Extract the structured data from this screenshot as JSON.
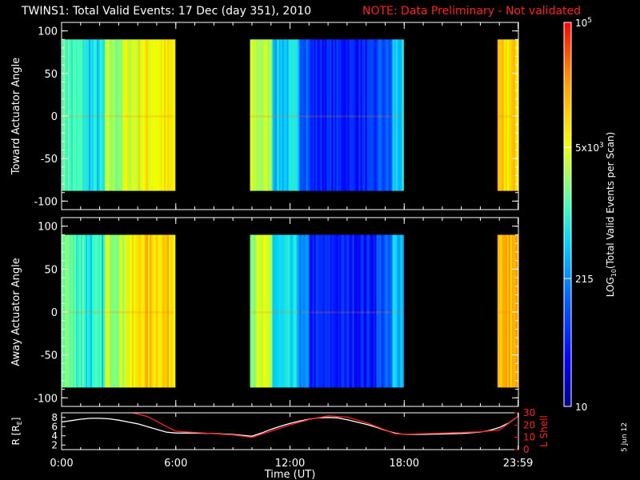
{
  "header": {
    "title": "TWINS1: Total Valid Events: 17 Dec (day 351), 2010",
    "note": "NOTE: Data Preliminary - Not validated",
    "note_color": "#ff2020"
  },
  "side_label": "5 Jun 12",
  "chart_data": [
    {
      "type": "heatmap",
      "panel": "toward",
      "ylabel": "Toward Actuator Angle",
      "ylim": [
        -110,
        110
      ],
      "yticks": [
        "100",
        "50",
        "0",
        "-50",
        "-100"
      ],
      "ytick_values": [
        100,
        50,
        0,
        -50,
        -100
      ],
      "angle_range": [
        -88,
        90
      ],
      "data_blocks_hours": [
        [
          0.0,
          5.9
        ],
        [
          9.9,
          17.9
        ],
        [
          22.9,
          23.98
        ]
      ],
      "colorscale": "rainbow (log)"
    },
    {
      "type": "heatmap",
      "panel": "away",
      "ylabel": "Away Actuator Angle",
      "ylim": [
        -110,
        110
      ],
      "yticks": [
        "100",
        "50",
        "0",
        "-50",
        "-100"
      ],
      "ytick_values": [
        100,
        50,
        0,
        -50,
        -100
      ],
      "angle_range": [
        -88,
        90
      ],
      "data_blocks_hours": [
        [
          0.0,
          5.9
        ],
        [
          9.9,
          17.9
        ],
        [
          22.9,
          23.98
        ]
      ],
      "colorscale": "rainbow (log)"
    },
    {
      "type": "line",
      "panel": "orbit",
      "xlabel": "Time (UT)",
      "xticks": [
        "0:00",
        "6:00",
        "12:00",
        "18:00",
        "23:59"
      ],
      "xtick_hours": [
        0,
        6,
        12,
        18,
        23.98
      ],
      "left_axis": {
        "label": "R [R",
        "label_sub": "E",
        "label_end": "]",
        "ylim": [
          1,
          9
        ],
        "ticks": [
          "8",
          "6",
          "4",
          "2"
        ],
        "tick_values": [
          8,
          6,
          4,
          2
        ]
      },
      "right_axis": {
        "label": "L Shell",
        "ylim": [
          0,
          30
        ],
        "ticks": [
          "30",
          "20",
          "10",
          "0"
        ],
        "tick_values": [
          30,
          20,
          10,
          0
        ],
        "color": "#ff2020"
      },
      "series": [
        {
          "axis": "left",
          "color": "#ffffff",
          "x": [
            0,
            0.5,
            1,
            1.5,
            2,
            2.5,
            3,
            3.5,
            4,
            4.5,
            5,
            5.5,
            6,
            7,
            8,
            9,
            10,
            10.5,
            11,
            11.5,
            12,
            12.5,
            13,
            13.5,
            14,
            14.5,
            15,
            15.5,
            16,
            16.5,
            17,
            17.5,
            18,
            19,
            20,
            21,
            22,
            22.5,
            23,
            23.5,
            23.98
          ],
          "y": [
            7.0,
            7.3,
            7.6,
            7.8,
            7.8,
            7.7,
            7.4,
            7.0,
            6.6,
            6.0,
            5.4,
            4.8,
            4.6,
            4.6,
            4.5,
            4.3,
            3.9,
            4.6,
            5.4,
            6.1,
            6.7,
            7.2,
            7.6,
            7.9,
            8.0,
            7.9,
            7.5,
            7.0,
            6.5,
            5.9,
            5.2,
            4.6,
            4.3,
            4.3,
            4.4,
            4.5,
            4.8,
            5.2,
            5.8,
            6.8,
            8.2
          ]
        },
        {
          "axis": "right",
          "color": "#ff2020",
          "x": [
            3.5,
            4.5,
            5,
            5.5,
            6,
            7,
            8,
            9,
            10,
            11,
            12,
            13,
            14,
            15,
            16,
            16.5,
            17,
            17.5,
            18,
            19,
            20,
            21,
            22,
            23,
            23.98
          ],
          "y": [
            31,
            27,
            23,
            19,
            15,
            14,
            13,
            12,
            10,
            15,
            20,
            24.5,
            27.5,
            26.5,
            22,
            19,
            16,
            13,
            12.5,
            13,
            13.5,
            14,
            14.5,
            16,
            27
          ]
        }
      ]
    }
  ],
  "colorbar": {
    "label_main": "LOG",
    "label_sub": "10",
    "label_rest": "(Total Valid Events per Scan)",
    "range_log": [
      1,
      5
    ],
    "labels": [
      {
        "value_log": 5.0,
        "text": "10",
        "sup": "5"
      },
      {
        "value_log": 3.699,
        "text": "5x10",
        "sup": "3"
      },
      {
        "value_log": 2.332,
        "text": "215",
        "sup": ""
      },
      {
        "value_log": 1.0,
        "text": "10",
        "sup": ""
      }
    ]
  }
}
